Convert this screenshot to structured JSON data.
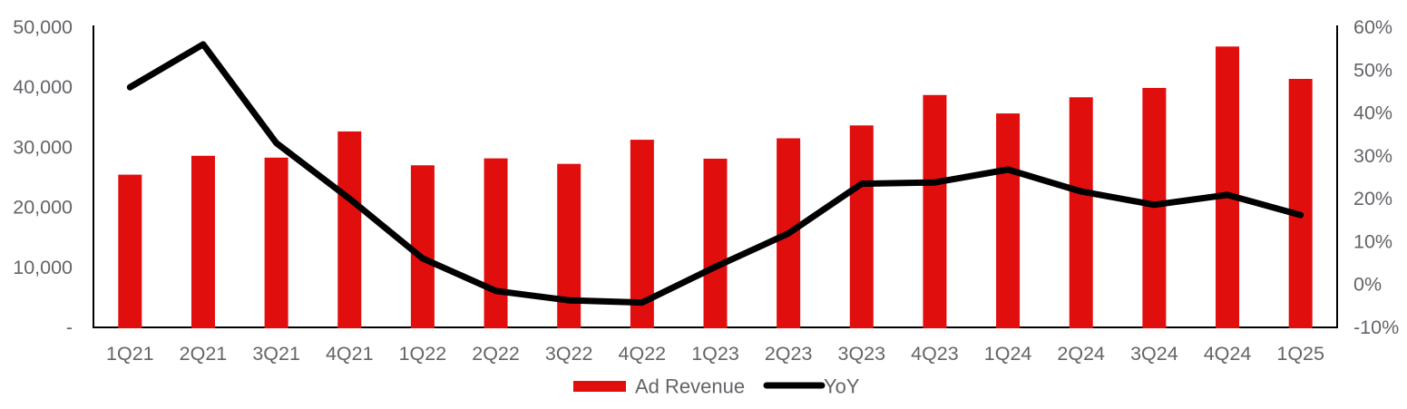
{
  "chart_data": {
    "type": "bar",
    "subtype": "combo-bar-line-dual-axis",
    "categories": [
      "1Q21",
      "2Q21",
      "3Q21",
      "4Q21",
      "1Q22",
      "2Q22",
      "3Q22",
      "4Q22",
      "1Q23",
      "2Q23",
      "3Q23",
      "4Q23",
      "1Q24",
      "2Q24",
      "3Q24",
      "4Q24",
      "1Q25"
    ],
    "series": [
      {
        "name": "Ad Revenue",
        "type": "bar",
        "axis": "left",
        "color": "#E10E0E",
        "values": [
          25439,
          28580,
          28276,
          32639,
          26998,
          28152,
          27237,
          31254,
          28101,
          31498,
          33643,
          38706,
          35635,
          38329,
          39885,
          46783,
          41392
        ]
      },
      {
        "name": "YoY",
        "type": "line",
        "axis": "right",
        "color": "#000000",
        "values": [
          46,
          56,
          33,
          20,
          6.1,
          -1.5,
          -3.7,
          -4.2,
          4.1,
          11.9,
          23.5,
          23.8,
          26.8,
          21.7,
          18.6,
          20.9,
          16.2
        ]
      }
    ],
    "left_axis": {
      "min": 0,
      "max": 50000,
      "tick_labels": [
        "50,000",
        "40,000",
        "30,000",
        "20,000",
        "10,000",
        "-"
      ]
    },
    "right_axis": {
      "min": -10,
      "max": 60,
      "tick_labels": [
        "60%",
        "50%",
        "40%",
        "30%",
        "20%",
        "10%",
        "0%",
        "-10%"
      ]
    },
    "legend": [
      {
        "label": "Ad Revenue",
        "swatch": "bar",
        "color": "#E10E0E"
      },
      {
        "label": "YoY",
        "swatch": "line",
        "color": "#000000"
      }
    ],
    "title": "",
    "xlabel": "",
    "ylabel": "",
    "grid": false,
    "legend_position": "bottom-center"
  },
  "colors": {
    "bar": "#E10E0E",
    "line": "#000000",
    "axis_line": "#000000",
    "tick_text": "#646469",
    "background": "#ffffff"
  }
}
